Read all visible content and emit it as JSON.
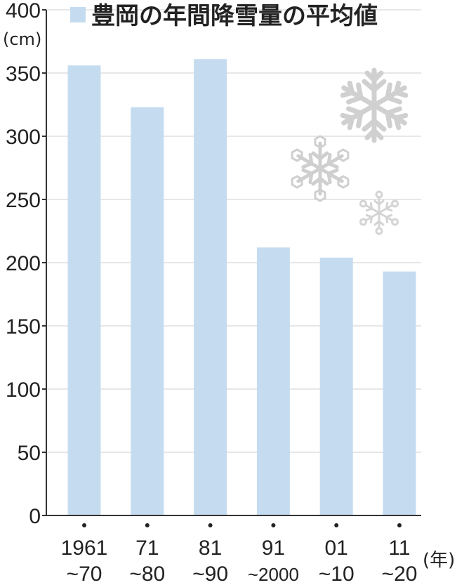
{
  "chart_data": {
    "type": "bar",
    "title": "豊岡の年間降雪量の平均値",
    "legend_label": "豊岡の年間降雪量の平均値",
    "ylabel": "(cm)",
    "xlabel": "(年)",
    "ylim": [
      0,
      400
    ],
    "yticks": [
      0,
      50,
      100,
      150,
      200,
      250,
      300,
      350,
      400
    ],
    "categories": [
      {
        "line1": "1961",
        "line2": "~70"
      },
      {
        "line1": "71",
        "line2": "~80"
      },
      {
        "line1": "81",
        "line2": "~90"
      },
      {
        "line1": "91",
        "line2": "~2000"
      },
      {
        "line1": "01",
        "line2": "~10"
      },
      {
        "line1": "11",
        "line2": "~20"
      }
    ],
    "values": [
      356,
      323,
      361,
      212,
      204,
      193
    ],
    "bar_color": "#c5dcf0",
    "grid": true,
    "grid_color": "#cfcfcf",
    "axis_color": "#333333"
  },
  "decorations": [
    "snowflake-icon",
    "snowflake-icon",
    "snowflake-icon"
  ]
}
